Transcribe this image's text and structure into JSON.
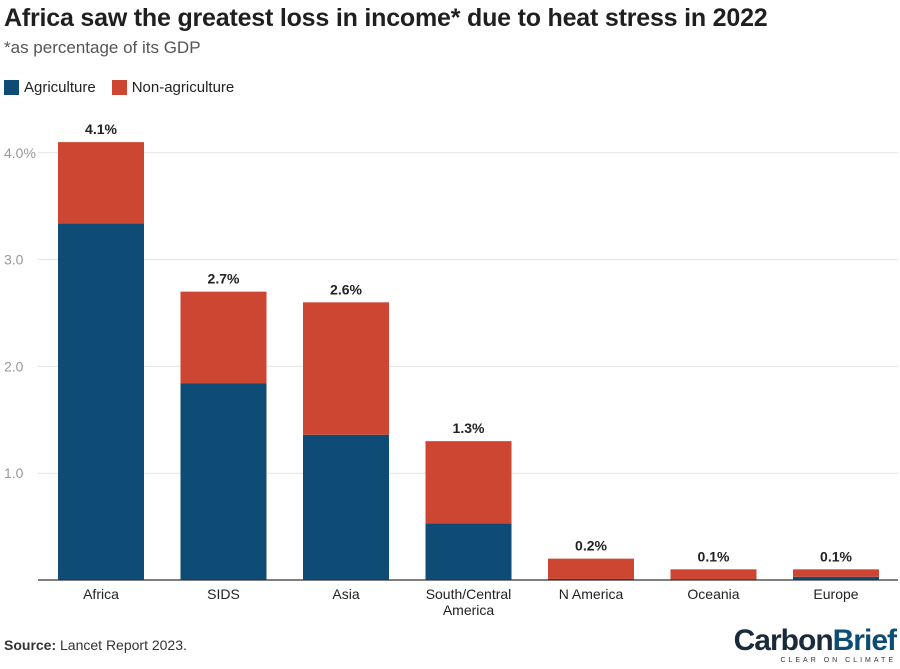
{
  "header": {
    "title": "Africa saw the greatest loss in income* due to heat stress in 2022",
    "subtitle": "*as percentage of its GDP"
  },
  "legend": {
    "items": [
      {
        "label": "Agriculture",
        "color": "#0f4c75"
      },
      {
        "label": "Non-agriculture",
        "color": "#cd4631"
      }
    ]
  },
  "footer": {
    "source_label": "Source:",
    "source_text": "Lancet Report 2023.",
    "logo_carbon": "Carbon",
    "logo_brief": "Brief",
    "logo_tagline": "CLEAR ON CLIMATE"
  },
  "chart_data": {
    "type": "bar",
    "stacked": true,
    "title": "Africa saw the greatest loss in income* due to heat stress in 2022",
    "subtitle": "*as percentage of its GDP",
    "categories": [
      "Africa",
      "SIDS",
      "Asia",
      "South/Central America",
      "N America",
      "Oceania",
      "Europe"
    ],
    "category_lines": [
      [
        "Africa"
      ],
      [
        "SIDS"
      ],
      [
        "Asia"
      ],
      [
        "South/Central",
        "America"
      ],
      [
        "N America"
      ],
      [
        "Oceania"
      ],
      [
        "Europe"
      ]
    ],
    "series": [
      {
        "name": "Agriculture",
        "color": "#0f4c75",
        "values": [
          3.34,
          1.84,
          1.36,
          0.53,
          0.01,
          0.0,
          0.03
        ]
      },
      {
        "name": "Non-agriculture",
        "color": "#cd4631",
        "values": [
          0.76,
          0.86,
          1.24,
          0.77,
          0.19,
          0.1,
          0.07
        ]
      }
    ],
    "totals_labels": [
      "4.1%",
      "2.7%",
      "2.6%",
      "1.3%",
      "0.2%",
      "0.1%",
      "0.1%"
    ],
    "yticks": [
      {
        "value": 1,
        "label": "1.0"
      },
      {
        "value": 2,
        "label": "2.0"
      },
      {
        "value": 3,
        "label": "3.0"
      },
      {
        "value": 4,
        "label": "4.0%"
      }
    ],
    "ylim": [
      0,
      4
    ],
    "grid": true,
    "legend_position": "top-left"
  }
}
